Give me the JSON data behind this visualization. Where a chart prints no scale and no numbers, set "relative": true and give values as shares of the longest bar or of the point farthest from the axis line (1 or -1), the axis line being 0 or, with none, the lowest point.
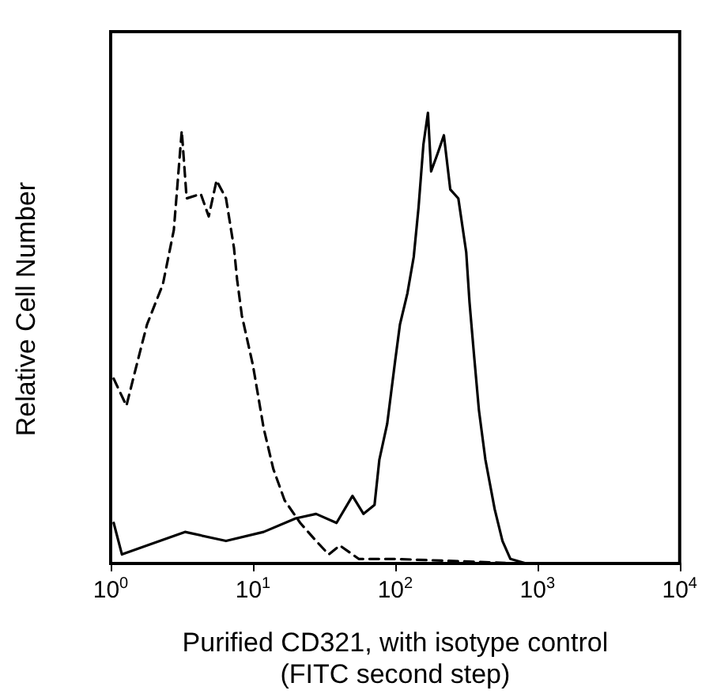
{
  "chart_data": {
    "type": "line",
    "relative": true,
    "xlabel": "Purified CD321, with isotype control\n(FITC second step)",
    "ylabel": "Relative Cell Number",
    "log": "x",
    "xlim": [
      1,
      10000
    ],
    "xticks": [
      {
        "value": 1,
        "label": "10$^{0}$"
      },
      {
        "value": 10,
        "label": "10$^{1}$"
      },
      {
        "value": 100,
        "label": "10$^{2}$"
      },
      {
        "value": 1000,
        "label": "10$^{3}$"
      },
      {
        "value": 10000,
        "label": "10$^{4}$"
      }
    ],
    "grid": false,
    "marker": "none",
    "series": [
      {
        "color": "#000000",
        "line_style": "dashed",
        "x": [
          1.05,
          1.29,
          1.55,
          1.8,
          2.33,
          2.78,
          3.16,
          3.42,
          4.3,
          4.89,
          5.55,
          6.47,
          7.36,
          7.74,
          8.36,
          10,
          11.9,
          13.9,
          16.7,
          21.5,
          27.8,
          34.1,
          40.8,
          55.5,
          100,
          278,
          774
        ],
        "values": [
          0.41,
          0.35,
          0.45,
          0.53,
          0.62,
          0.74,
          0.96,
          0.81,
          0.82,
          0.77,
          0.85,
          0.81,
          0.7,
          0.63,
          0.55,
          0.44,
          0.3,
          0.21,
          0.14,
          0.09,
          0.05,
          0.02,
          0.04,
          0.01,
          0.01,
          0.005,
          0
        ]
      },
      {
        "color": "#000000",
        "line_style": "solid",
        "x": [
          1.05,
          1.2,
          1.8,
          3.33,
          6.47,
          11.9,
          20,
          27.8,
          38.7,
          50.1,
          59.9,
          71.6,
          77.4,
          87.9,
          100,
          108,
          122,
          135,
          146,
          158,
          170,
          179,
          199,
          220,
          244,
          278,
          316,
          333,
          359,
          388,
          431,
          501,
          568,
          646,
          834
        ],
        "values": [
          0.09,
          0.02,
          0.04,
          0.07,
          0.05,
          0.07,
          0.1,
          0.11,
          0.09,
          0.15,
          0.11,
          0.13,
          0.23,
          0.31,
          0.45,
          0.53,
          0.6,
          0.68,
          0.79,
          0.93,
          1,
          0.87,
          0.91,
          0.95,
          0.83,
          0.81,
          0.69,
          0.58,
          0.46,
          0.34,
          0.23,
          0.12,
          0.05,
          0.01,
          0
        ]
      }
    ]
  }
}
